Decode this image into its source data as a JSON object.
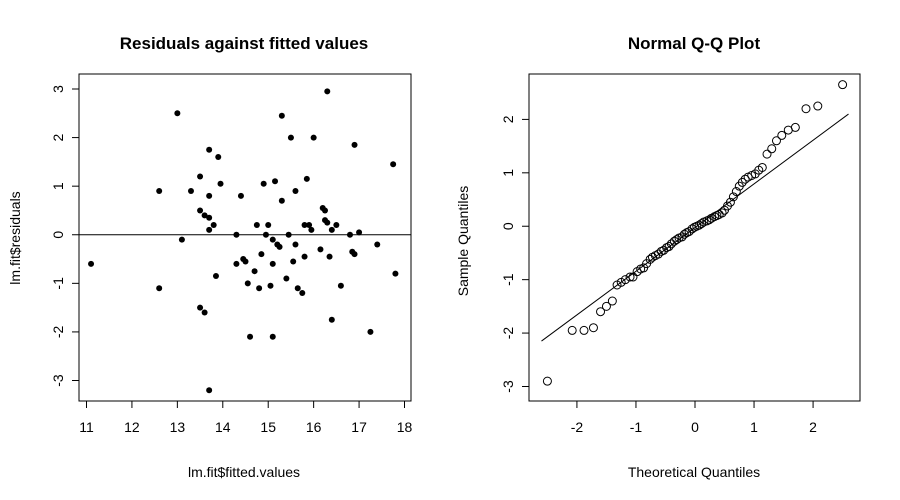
{
  "chart_data": [
    {
      "type": "scatter",
      "title": "Residuals against fitted values",
      "xlabel": "lm.fit$fitted.values",
      "ylabel": "lm.fit$residuals",
      "xlim": [
        11,
        18
      ],
      "ylim": [
        -3,
        3
      ],
      "xticks": [
        "11",
        "12",
        "13",
        "14",
        "15",
        "16",
        "17",
        "18"
      ],
      "yticks": [
        "-3",
        "-2",
        "-1",
        "0",
        "1",
        "2",
        "3"
      ],
      "marker": "filled",
      "reference_line": {
        "type": "horizontal",
        "y": 0
      },
      "grid": false,
      "points": [
        [
          11.1,
          -0.6
        ],
        [
          12.6,
          0.9
        ],
        [
          12.6,
          -1.1
        ],
        [
          13.0,
          2.5
        ],
        [
          13.1,
          -0.1
        ],
        [
          13.3,
          0.9
        ],
        [
          13.5,
          1.2
        ],
        [
          13.5,
          0.5
        ],
        [
          13.5,
          -1.5
        ],
        [
          13.6,
          0.4
        ],
        [
          13.6,
          -1.6
        ],
        [
          13.7,
          0.1
        ],
        [
          13.7,
          0.8
        ],
        [
          13.7,
          0.35
        ],
        [
          13.7,
          1.75
        ],
        [
          13.7,
          -3.2
        ],
        [
          13.8,
          0.2
        ],
        [
          13.85,
          -0.85
        ],
        [
          13.9,
          1.6
        ],
        [
          13.95,
          1.05
        ],
        [
          14.3,
          0.0
        ],
        [
          14.3,
          -0.6
        ],
        [
          14.4,
          0.8
        ],
        [
          14.45,
          -0.5
        ],
        [
          14.5,
          -0.55
        ],
        [
          14.55,
          -1.0
        ],
        [
          14.6,
          -2.1
        ],
        [
          14.7,
          -0.75
        ],
        [
          14.75,
          0.2
        ],
        [
          14.8,
          -1.1
        ],
        [
          14.85,
          -0.4
        ],
        [
          14.9,
          1.05
        ],
        [
          14.95,
          0.0
        ],
        [
          15.0,
          0.2
        ],
        [
          15.05,
          -1.05
        ],
        [
          15.1,
          -0.1
        ],
        [
          15.1,
          -0.6
        ],
        [
          15.1,
          -2.1
        ],
        [
          15.15,
          1.1
        ],
        [
          15.2,
          -0.2
        ],
        [
          15.25,
          -0.25
        ],
        [
          15.3,
          0.7
        ],
        [
          15.3,
          2.45
        ],
        [
          15.4,
          -0.9
        ],
        [
          15.45,
          0.0
        ],
        [
          15.5,
          2.0
        ],
        [
          15.55,
          -0.55
        ],
        [
          15.6,
          0.9
        ],
        [
          15.6,
          -0.2
        ],
        [
          15.65,
          -1.1
        ],
        [
          15.75,
          -1.2
        ],
        [
          15.8,
          0.2
        ],
        [
          15.8,
          -0.45
        ],
        [
          15.85,
          1.15
        ],
        [
          15.9,
          0.2
        ],
        [
          15.95,
          0.1
        ],
        [
          16.0,
          2.0
        ],
        [
          16.15,
          -0.3
        ],
        [
          16.2,
          0.55
        ],
        [
          16.25,
          0.3
        ],
        [
          16.25,
          0.5
        ],
        [
          16.3,
          0.25
        ],
        [
          16.3,
          2.95
        ],
        [
          16.35,
          -0.45
        ],
        [
          16.4,
          0.1
        ],
        [
          16.4,
          -1.75
        ],
        [
          16.5,
          0.2
        ],
        [
          16.6,
          -1.05
        ],
        [
          16.8,
          0.0
        ],
        [
          16.85,
          -0.35
        ],
        [
          16.9,
          -0.4
        ],
        [
          16.9,
          1.85
        ],
        [
          17.0,
          0.05
        ],
        [
          17.25,
          -2.0
        ],
        [
          17.4,
          -0.2
        ],
        [
          17.75,
          1.45
        ],
        [
          17.8,
          -0.8
        ]
      ]
    },
    {
      "type": "scatter",
      "title": "Normal Q-Q Plot",
      "xlabel": "Theoretical Quantiles",
      "ylabel": "Sample Quantiles",
      "xlim": [
        -2.6,
        2.6
      ],
      "ylim": [
        -3.15,
        2.85
      ],
      "xticks": [
        "-2",
        "-1",
        "0",
        "1",
        "2"
      ],
      "yticks": [
        "-3",
        "-2",
        "-1",
        "0",
        "1",
        "2"
      ],
      "marker": "open",
      "reference_line": {
        "type": "qqline",
        "x1": -2.6,
        "y1": -2.15,
        "x2": 2.6,
        "y2": 2.1
      },
      "grid": false,
      "points": [
        [
          -2.5,
          -2.9
        ],
        [
          -2.08,
          -1.95
        ],
        [
          -1.88,
          -1.95
        ],
        [
          -1.72,
          -1.9
        ],
        [
          -1.6,
          -1.6
        ],
        [
          -1.5,
          -1.5
        ],
        [
          -1.4,
          -1.4
        ],
        [
          -1.32,
          -1.1
        ],
        [
          -1.25,
          -1.05
        ],
        [
          -1.18,
          -1.0
        ],
        [
          -1.1,
          -0.95
        ],
        [
          -1.05,
          -0.95
        ],
        [
          -0.98,
          -0.85
        ],
        [
          -0.92,
          -0.8
        ],
        [
          -0.87,
          -0.78
        ],
        [
          -0.82,
          -0.7
        ],
        [
          -0.76,
          -0.62
        ],
        [
          -0.72,
          -0.58
        ],
        [
          -0.67,
          -0.55
        ],
        [
          -0.62,
          -0.52
        ],
        [
          -0.57,
          -0.47
        ],
        [
          -0.53,
          -0.45
        ],
        [
          -0.48,
          -0.4
        ],
        [
          -0.44,
          -0.38
        ],
        [
          -0.4,
          -0.33
        ],
        [
          -0.35,
          -0.28
        ],
        [
          -0.31,
          -0.25
        ],
        [
          -0.27,
          -0.22
        ],
        [
          -0.22,
          -0.2
        ],
        [
          -0.18,
          -0.15
        ],
        [
          -0.14,
          -0.12
        ],
        [
          -0.1,
          -0.1
        ],
        [
          -0.05,
          -0.05
        ],
        [
          -0.01,
          -0.02
        ],
        [
          0.03,
          0.0
        ],
        [
          0.07,
          0.02
        ],
        [
          0.11,
          0.05
        ],
        [
          0.15,
          0.08
        ],
        [
          0.2,
          0.1
        ],
        [
          0.24,
          0.12
        ],
        [
          0.28,
          0.15
        ],
        [
          0.33,
          0.18
        ],
        [
          0.37,
          0.2
        ],
        [
          0.41,
          0.22
        ],
        [
          0.46,
          0.25
        ],
        [
          0.5,
          0.3
        ],
        [
          0.55,
          0.38
        ],
        [
          0.6,
          0.45
        ],
        [
          0.65,
          0.55
        ],
        [
          0.7,
          0.65
        ],
        [
          0.75,
          0.75
        ],
        [
          0.8,
          0.82
        ],
        [
          0.85,
          0.88
        ],
        [
          0.9,
          0.92
        ],
        [
          0.96,
          0.95
        ],
        [
          1.02,
          0.98
        ],
        [
          1.08,
          1.05
        ],
        [
          1.14,
          1.1
        ],
        [
          1.22,
          1.35
        ],
        [
          1.3,
          1.45
        ],
        [
          1.38,
          1.6
        ],
        [
          1.47,
          1.7
        ],
        [
          1.58,
          1.8
        ],
        [
          1.7,
          1.85
        ],
        [
          1.88,
          2.2
        ],
        [
          2.08,
          2.25
        ],
        [
          2.5,
          2.65
        ]
      ]
    }
  ]
}
